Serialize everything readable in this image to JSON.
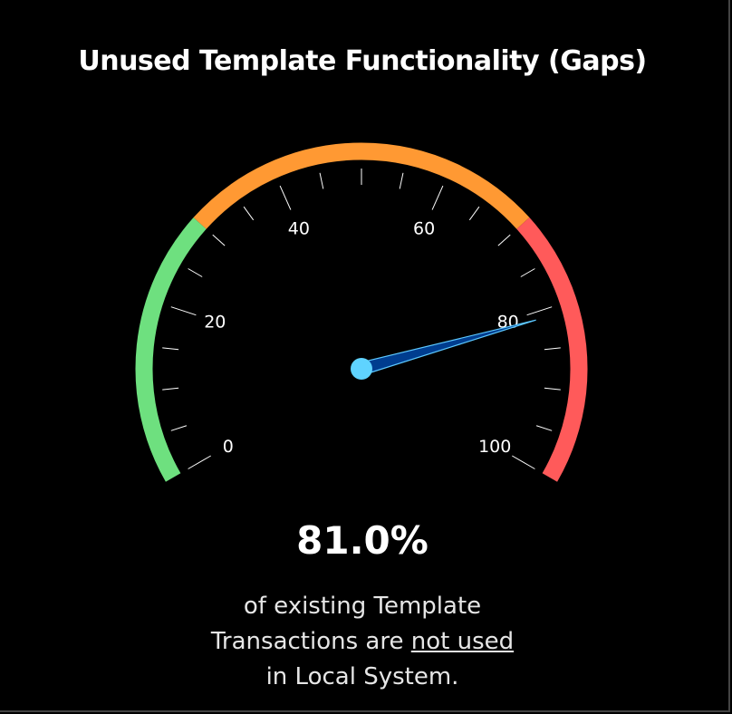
{
  "title": "Unused Template Functionality (Gaps)",
  "value_text": "81.0%",
  "description": {
    "line1": "of existing Template",
    "line2_pre": "Transactions are ",
    "line2_emph": "not used",
    "line3": "in Local System."
  },
  "chart_data": {
    "type": "gauge",
    "value": 81.0,
    "range": [
      0,
      100
    ],
    "major_ticks": [
      0,
      20,
      40,
      60,
      80,
      100
    ],
    "tick_labels": [
      "0",
      "20",
      "40",
      "60",
      "80",
      "100"
    ],
    "minor_tick_step": 5,
    "bands": [
      {
        "from": 0,
        "to": 30,
        "color": "#6ee07f"
      },
      {
        "from": 30,
        "to": 70,
        "color": "#ff9933"
      },
      {
        "from": 70,
        "to": 100,
        "color": "#ff5a5a"
      }
    ],
    "needle_color": "#003d8f",
    "needle_outline_color": "#5cc8ff",
    "hub_color": "#5fd3ff"
  }
}
